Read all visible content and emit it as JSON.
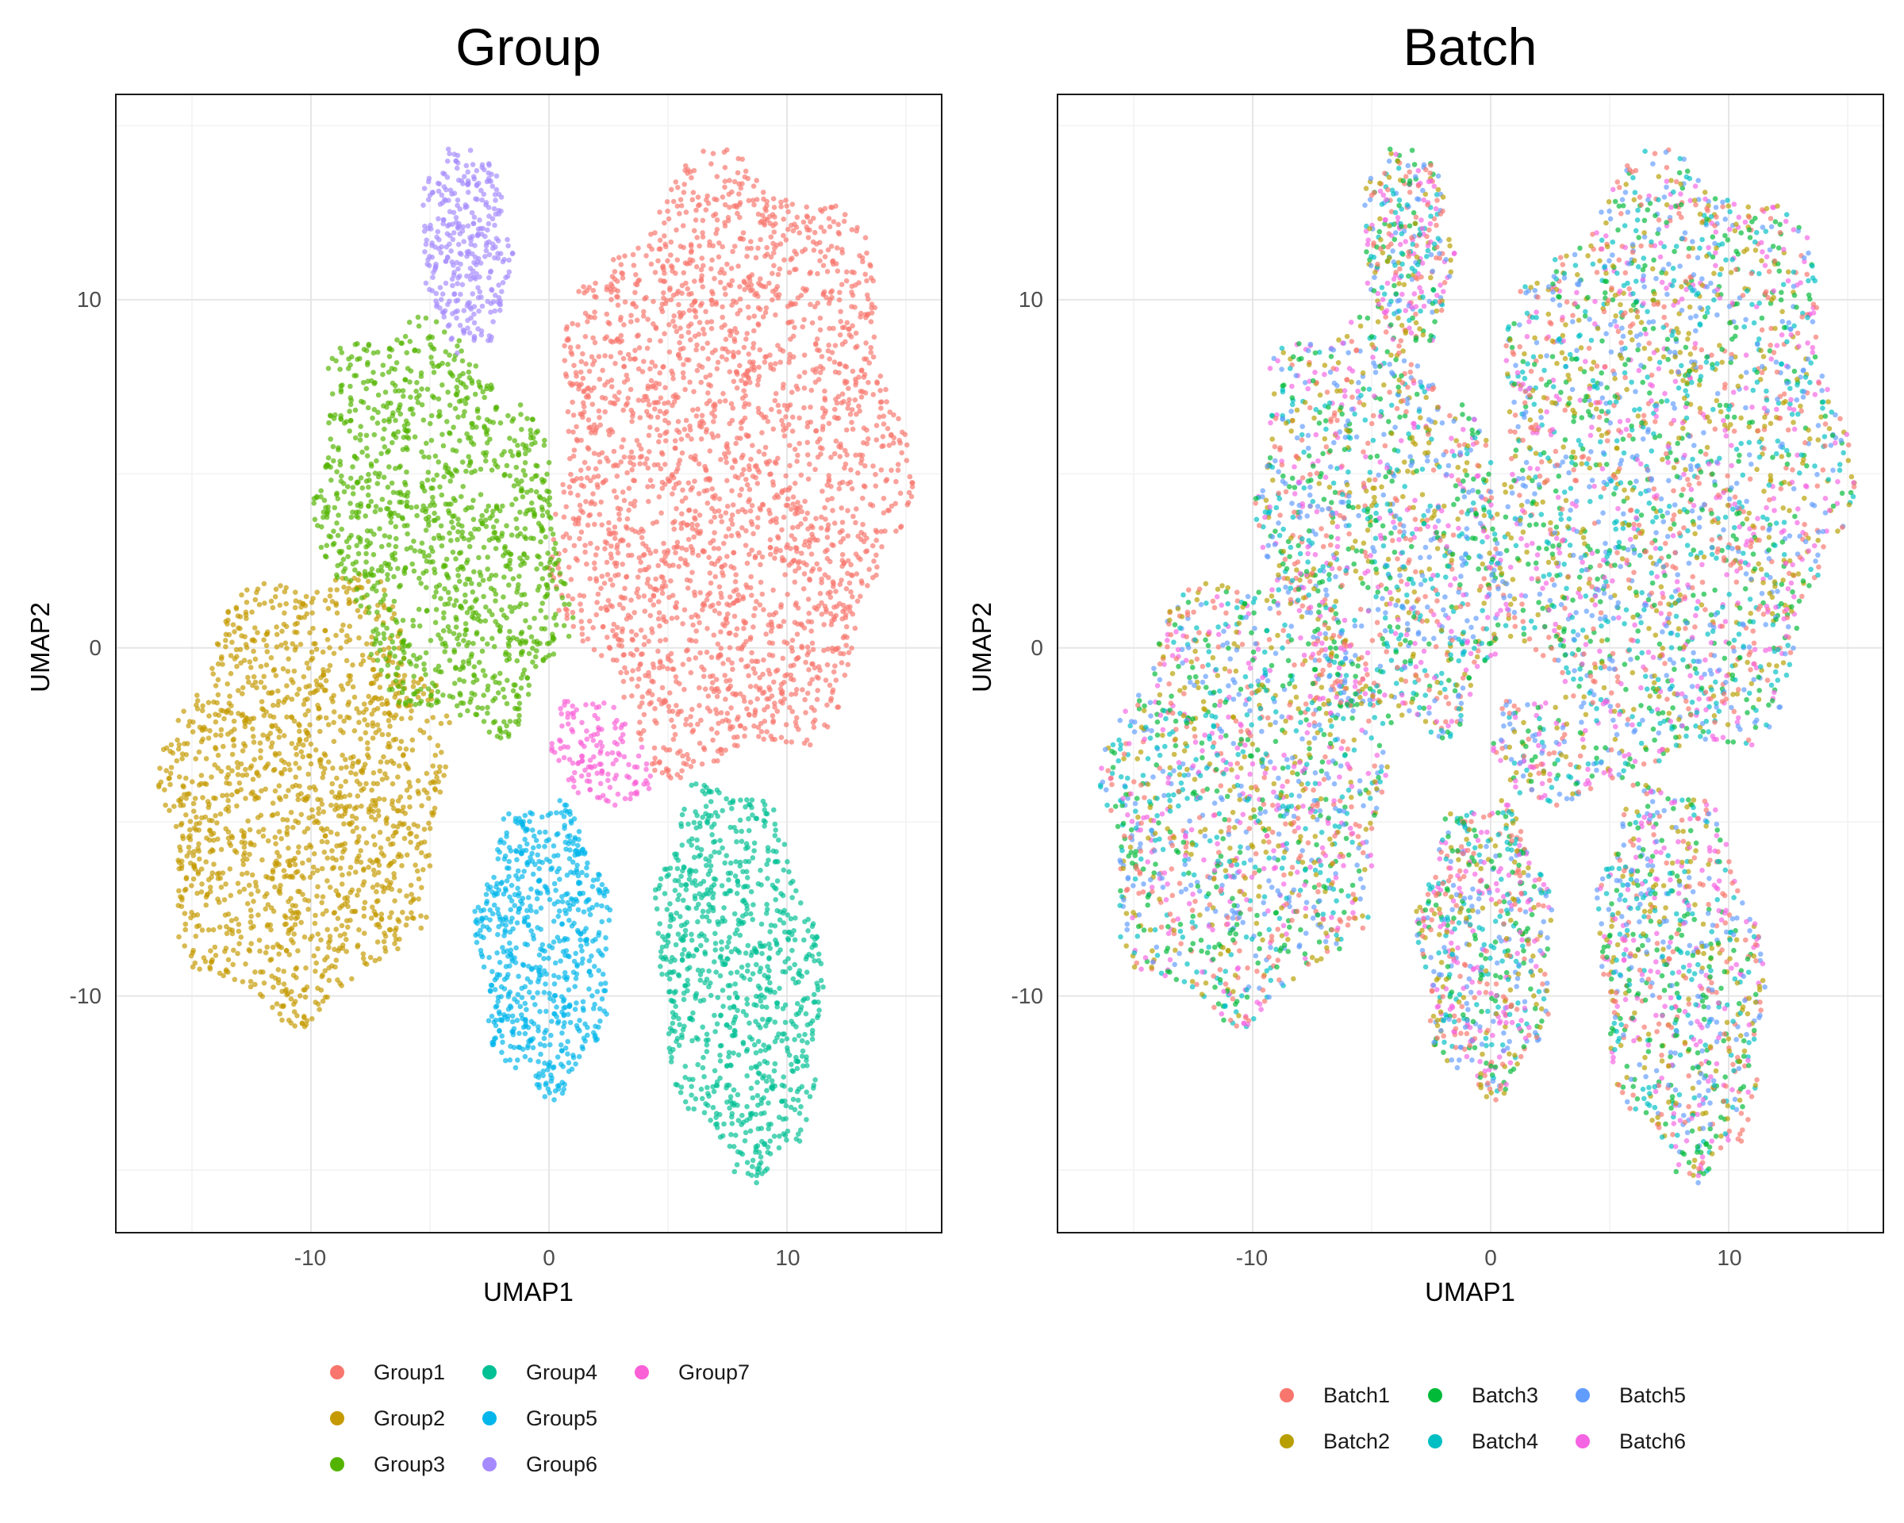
{
  "chart_data": [
    {
      "type": "scatter",
      "title": "Group",
      "xlabel": "UMAP1",
      "ylabel": "UMAP2",
      "xlim": [
        -18.2,
        16.5
      ],
      "ylim": [
        -16.8,
        15.9
      ],
      "x_ticks": [
        -10,
        0,
        10
      ],
      "y_ticks": [
        -10,
        0,
        10
      ],
      "grid": true,
      "legend_position": "bottom",
      "legend_columns": 3,
      "series": [
        {
          "name": "Group1",
          "color": "#F8766D"
        },
        {
          "name": "Group2",
          "color": "#C49A00"
        },
        {
          "name": "Group3",
          "color": "#53B400"
        },
        {
          "name": "Group4",
          "color": "#00C094"
        },
        {
          "name": "Group5",
          "color": "#00B6EB"
        },
        {
          "name": "Group6",
          "color": "#A58AFF"
        },
        {
          "name": "Group7",
          "color": "#FB61D7"
        }
      ],
      "clusters": [
        {
          "series": "Group1",
          "center": [
            7.5,
            5.2
          ],
          "radius": [
            7.8,
            9.4
          ],
          "rotation_deg": -8,
          "n_points": 2400
        },
        {
          "series": "Group2",
          "center": [
            -10.2,
            -4.2
          ],
          "radius": [
            6.2,
            7.0
          ],
          "rotation_deg": -30,
          "n_points": 1500
        },
        {
          "series": "Group3",
          "center": [
            -4.5,
            3.5
          ],
          "radius": [
            5.0,
            6.8
          ],
          "rotation_deg": 35,
          "n_points": 1200
        },
        {
          "series": "Group4",
          "center": [
            8.0,
            -9.5
          ],
          "radius": [
            3.6,
            6.1
          ],
          "rotation_deg": 12,
          "n_points": 850
        },
        {
          "series": "Group5",
          "center": [
            -0.2,
            -8.6
          ],
          "radius": [
            3.0,
            4.5
          ],
          "rotation_deg": 3,
          "n_points": 650
        },
        {
          "series": "Group6",
          "center": [
            -3.5,
            11.5
          ],
          "radius": [
            2.0,
            3.2
          ],
          "rotation_deg": 5,
          "n_points": 320
        },
        {
          "series": "Group7",
          "center": [
            2.2,
            -3.0
          ],
          "radius": [
            2.4,
            1.5
          ],
          "rotation_deg": -20,
          "n_points": 140
        }
      ]
    },
    {
      "type": "scatter",
      "title": "Batch",
      "xlabel": "UMAP1",
      "ylabel": "UMAP2",
      "xlim": [
        -18.2,
        16.5
      ],
      "ylim": [
        -16.8,
        15.9
      ],
      "x_ticks": [
        -10,
        0,
        10
      ],
      "y_ticks": [
        -10,
        0,
        10
      ],
      "grid": true,
      "legend_position": "bottom",
      "legend_columns": 3,
      "series": [
        {
          "name": "Batch1",
          "color": "#F8766D"
        },
        {
          "name": "Batch2",
          "color": "#B79F00"
        },
        {
          "name": "Batch3",
          "color": "#00BA38"
        },
        {
          "name": "Batch4",
          "color": "#00BFC4"
        },
        {
          "name": "Batch5",
          "color": "#619CFF"
        },
        {
          "name": "Batch6",
          "color": "#F564E3"
        }
      ],
      "note_points": "same point cloud as the Group panel, with each point colored by batch (batches mixed across all clusters)"
    }
  ],
  "panels": [
    {
      "title": "Group",
      "xlabel": "UMAP1",
      "ylabel": "UMAP2"
    },
    {
      "title": "Batch",
      "xlabel": "UMAP1",
      "ylabel": "UMAP2"
    }
  ],
  "ticks": {
    "x": [
      "-10",
      "0",
      "10"
    ],
    "y": [
      "10",
      "0",
      "-10"
    ]
  },
  "legends": [
    [
      "Group1",
      "Group4",
      "Group7",
      "Group2",
      "Group5",
      "Group3",
      "Group6"
    ],
    [
      "Batch1",
      "Batch3",
      "Batch5",
      "Batch2",
      "Batch4",
      "Batch6"
    ]
  ]
}
